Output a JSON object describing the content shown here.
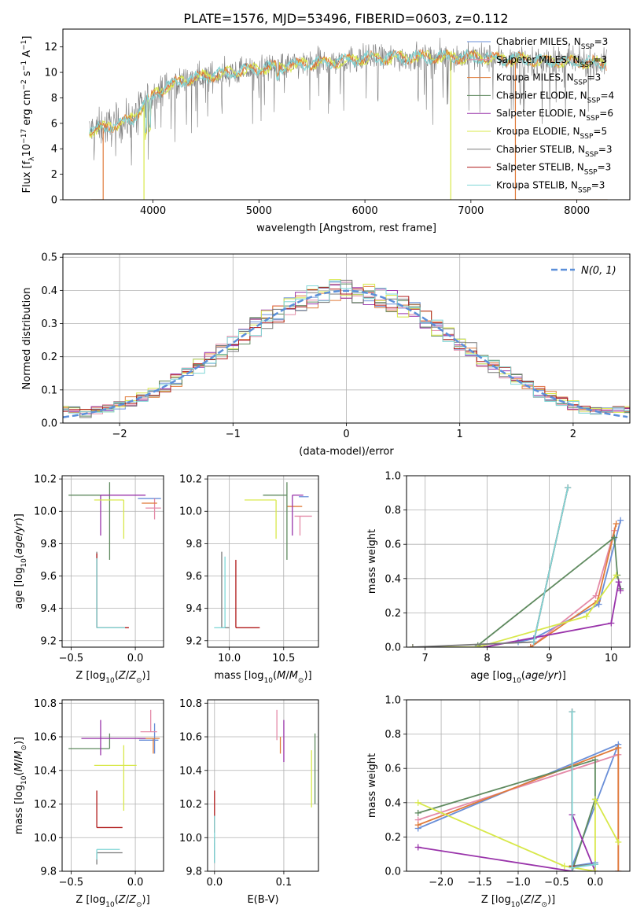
{
  "figure_title": "PLATE=1576, MJD=53496, FIBERID=0603, z=0.112",
  "colors": {
    "chabrier_miles": "#6a8fd8",
    "salpeter_miles": "#e48aa8",
    "kroupa_miles": "#e07b3a",
    "chabrier_elodie": "#5f8a5f",
    "salpeter_elodie": "#9933aa",
    "kroupa_elodie": "#d8e84a",
    "chabrier_stelib": "#7a7a7a",
    "salpeter_stelib": "#b01a1a",
    "kroupa_stelib": "#7fd6d6",
    "normal": "#5b8fd9",
    "grid": "#b0b0b0"
  },
  "chart_data": [
    {
      "id": "spectrum",
      "type": "line",
      "xlabel": "wavelength [Angstrom, rest frame]",
      "ylabel": "Flux [f",
      "ylabel_sub": "λ",
      "ylabel_rest": "10",
      "ylabel_exp": "−17",
      "ylabel_tail": " erg cm",
      "ylabel_exp2": "−2",
      "ylabel_tail2": " s",
      "ylabel_exp3": "−1",
      "ylabel_tail3": " A",
      "ylabel_exp4": "−1",
      "ylabel_end": "]",
      "xlim": [
        3150,
        8500
      ],
      "ylim": [
        0,
        13.4
      ],
      "xticks": [
        4000,
        5000,
        6000,
        7000,
        8000
      ],
      "yticks": [
        0,
        2,
        4,
        6,
        8,
        10,
        12
      ],
      "continuum": [
        [
          3400,
          5.4
        ],
        [
          3650,
          5.9
        ],
        [
          3800,
          6.3
        ],
        [
          3950,
          7.8
        ],
        [
          4100,
          8.8
        ],
        [
          4300,
          9.4
        ],
        [
          4600,
          9.8
        ],
        [
          5000,
          10.3
        ],
        [
          5500,
          10.7
        ],
        [
          6000,
          11.1
        ],
        [
          6500,
          11.2
        ],
        [
          7000,
          11.2
        ],
        [
          7500,
          11.0
        ],
        [
          8000,
          10.8
        ],
        [
          8280,
          10.7
        ]
      ],
      "legend": [
        {
          "name": "Chabrier MILES, N",
          "sub": "SSP",
          "tail": "=3",
          "color_key": "chabrier_miles"
        },
        {
          "name": "Salpeter MILES, N",
          "sub": "SSP",
          "tail": "=3",
          "color_key": "salpeter_miles"
        },
        {
          "name": "Kroupa MILES, N",
          "sub": "SSP",
          "tail": "=3",
          "color_key": "kroupa_miles"
        },
        {
          "name": "Chabrier ELODIE, N",
          "sub": "SSP",
          "tail": "=4",
          "color_key": "chabrier_elodie"
        },
        {
          "name": "Salpeter ELODIE, N",
          "sub": "SSP",
          "tail": "=6",
          "color_key": "salpeter_elodie"
        },
        {
          "name": "Kroupa ELODIE, N",
          "sub": "SSP",
          "tail": "=5",
          "color_key": "kroupa_elodie"
        },
        {
          "name": "Chabrier STELIB, N",
          "sub": "SSP",
          "tail": "=3",
          "color_key": "chabrier_stelib"
        },
        {
          "name": "Salpeter STELIB, N",
          "sub": "SSP",
          "tail": "=3",
          "color_key": "salpeter_stelib"
        },
        {
          "name": "Kroupa STELIB, N",
          "sub": "SSP",
          "tail": "=3",
          "color_key": "kroupa_stelib"
        }
      ]
    },
    {
      "id": "residuals",
      "type": "line",
      "xlabel": "(data-model)/error",
      "ylabel": "Normed distribution",
      "xlim": [
        -2.5,
        2.5
      ],
      "ylim": [
        0,
        0.51
      ],
      "xticks": [
        -2,
        -1,
        0,
        1,
        2
      ],
      "yticks": [
        0.0,
        0.1,
        0.2,
        0.3,
        0.4,
        0.5
      ],
      "grid": true,
      "legend": "N(0, 1)",
      "legend_position": "top-right",
      "normal_mean": 0,
      "normal_sigma": 1
    },
    {
      "id": "age_vs_Z",
      "type": "scatter",
      "xlabel": "Z [log10(Z/Z⊙)]",
      "ylabel": "age  [log10(age/yr)]",
      "xlim": [
        -0.57,
        0.22
      ],
      "ylim": [
        9.16,
        10.22
      ],
      "xticks": [
        -0.5,
        0.0
      ],
      "yticks": [
        9.2,
        9.4,
        9.6,
        9.8,
        10.0,
        10.2
      ],
      "grid": true,
      "errorbars": [
        {
          "series": "chabrier_miles",
          "x": 0.12,
          "y": 10.08,
          "xerr": [
            0.1,
            0.08
          ],
          "yerr": [
            0.0,
            0.0
          ]
        },
        {
          "series": "salpeter_miles",
          "x": 0.15,
          "y": 10.02,
          "xerr": [
            0.07,
            0.05
          ],
          "yerr": [
            0.07,
            0.06
          ]
        },
        {
          "series": "kroupa_miles",
          "x": 0.14,
          "y": 10.05,
          "xerr": [
            0.09,
            0.03
          ],
          "yerr": [
            0.0,
            0.0
          ]
        },
        {
          "series": "chabrier_elodie",
          "x": -0.2,
          "y": 10.1,
          "xerr": [
            0.32,
            0.0
          ],
          "yerr": [
            0.4,
            0.08
          ]
        },
        {
          "series": "salpeter_elodie",
          "x": -0.27,
          "y": 10.1,
          "xerr": [
            0.0,
            0.35
          ],
          "yerr": [
            0.25,
            0.0
          ]
        },
        {
          "series": "kroupa_elodie",
          "x": -0.09,
          "y": 10.07,
          "xerr": [
            0.23,
            0.0
          ],
          "yerr": [
            0.24,
            0.0
          ]
        },
        {
          "series": "chabrier_stelib",
          "x": -0.3,
          "y": 9.28,
          "xerr": [
            0.0,
            0.2
          ],
          "yerr": [
            0.0,
            0.47
          ]
        },
        {
          "series": "salpeter_stelib",
          "x": -0.3,
          "y": 9.28,
          "xerr": [
            0.0,
            0.25
          ],
          "yerr": [
            0.0,
            0.46
          ]
        },
        {
          "series": "kroupa_stelib",
          "x": -0.3,
          "y": 9.28,
          "xerr": [
            0.0,
            0.22
          ],
          "yerr": [
            0.0,
            0.43
          ]
        }
      ]
    },
    {
      "id": "age_vs_mass",
      "type": "scatter",
      "xlabel": "mass [log10(M/M⊙)]",
      "ylabel": "",
      "xlim": [
        9.8,
        10.82
      ],
      "ylim": [
        9.16,
        10.22
      ],
      "xticks": [
        10.0,
        10.5
      ],
      "yticks": [
        9.2,
        9.4,
        9.6,
        9.8,
        10.0,
        10.2
      ],
      "grid": true,
      "errorbars": [
        {
          "series": "chabrier_miles",
          "x": 10.7,
          "y": 10.09,
          "xerr": [
            0.06,
            0.03
          ],
          "yerr": [
            0.0,
            0.0
          ]
        },
        {
          "series": "salpeter_miles",
          "x": 10.65,
          "y": 9.97,
          "xerr": [
            0.05,
            0.11
          ],
          "yerr": [
            0.12,
            0.0
          ]
        },
        {
          "series": "kroupa_miles",
          "x": 10.62,
          "y": 10.03,
          "xerr": [
            0.09,
            0.05
          ],
          "yerr": [
            0.0,
            0.0
          ]
        },
        {
          "series": "chabrier_elodie",
          "x": 10.53,
          "y": 10.1,
          "xerr": [
            0.22,
            0.0
          ],
          "yerr": [
            0.4,
            0.08
          ]
        },
        {
          "series": "salpeter_elodie",
          "x": 10.58,
          "y": 10.1,
          "xerr": [
            0.0,
            0.1
          ],
          "yerr": [
            0.25,
            0.0
          ]
        },
        {
          "series": "kroupa_elodie",
          "x": 10.43,
          "y": 10.07,
          "xerr": [
            0.29,
            0.0
          ],
          "yerr": [
            0.24,
            0.0
          ]
        },
        {
          "series": "chabrier_stelib",
          "x": 9.93,
          "y": 9.28,
          "xerr": [
            0.0,
            0.07
          ],
          "yerr": [
            0.0,
            0.47
          ]
        },
        {
          "series": "salpeter_stelib",
          "x": 10.06,
          "y": 9.28,
          "xerr": [
            0.0,
            0.22
          ],
          "yerr": [
            0.0,
            0.42
          ]
        },
        {
          "series": "kroupa_stelib",
          "x": 9.96,
          "y": 9.28,
          "xerr": [
            0.1,
            0.0
          ],
          "yerr": [
            0.0,
            0.44
          ]
        }
      ]
    },
    {
      "id": "weight_vs_age",
      "type": "line",
      "xlabel": "age  [log10(age/yr)]",
      "ylabel": "mass weight",
      "xlim": [
        6.7,
        10.3
      ],
      "ylim": [
        0,
        1.0
      ],
      "xticks": [
        7,
        8,
        9,
        10
      ],
      "yticks": [
        0.0,
        0.2,
        0.4,
        0.6,
        0.8,
        1.0
      ],
      "grid": true,
      "series": [
        {
          "name": "chabrier_miles",
          "x": [
            8.5,
            8.75,
            9.8,
            10.15
          ],
          "y": [
            0.03,
            0.05,
            0.25,
            0.74
          ]
        },
        {
          "name": "salpeter_miles",
          "x": [
            8.7,
            9.75,
            10.05
          ],
          "y": [
            0.0,
            0.3,
            0.68
          ]
        },
        {
          "name": "kroupa_miles",
          "x": [
            8.7,
            9.78,
            10.08
          ],
          "y": [
            0.0,
            0.27,
            0.72
          ]
        },
        {
          "name": "chabrier_elodie",
          "x": [
            7.85,
            10.05,
            10.1,
            10.15
          ],
          "y": [
            0.01,
            0.64,
            0.42,
            0.34
          ]
        },
        {
          "name": "salpeter_elodie",
          "x": [
            7.95,
            10.0,
            10.12,
            10.15
          ],
          "y": [
            0.0,
            0.14,
            0.38,
            0.33
          ]
        },
        {
          "name": "kroupa_elodie",
          "x": [
            6.8,
            7.85,
            9.6,
            10.08
          ],
          "y": [
            0.0,
            0.0,
            0.18,
            0.42
          ]
        },
        {
          "name": "chabrier_stelib",
          "x": [
            6.8,
            8.75,
            9.3
          ],
          "y": [
            0.0,
            0.03,
            0.93
          ]
        },
        {
          "name": "salpeter_stelib",
          "x": [
            8.75,
            9.3
          ],
          "y": [
            0.03,
            0.93
          ]
        },
        {
          "name": "kroupa_stelib",
          "x": [
            8.75,
            9.3
          ],
          "y": [
            0.03,
            0.93
          ]
        }
      ]
    },
    {
      "id": "mass_vs_Z",
      "type": "scatter",
      "xlabel": "Z [log10(Z/Z⊙)]",
      "ylabel": "mass [log10(M/M⊙)]",
      "xlim": [
        -0.57,
        0.22
      ],
      "ylim": [
        9.8,
        10.82
      ],
      "xticks": [
        -0.5,
        0.0
      ],
      "yticks": [
        9.8,
        10.0,
        10.2,
        10.4,
        10.6,
        10.8
      ],
      "grid": true,
      "errorbars": [
        {
          "series": "chabrier_miles",
          "x": 0.15,
          "y": 10.58,
          "xerr": [
            0.12,
            0.03
          ],
          "yerr": [
            0.08,
            0.1
          ]
        },
        {
          "series": "salpeter_miles",
          "x": 0.12,
          "y": 10.63,
          "xerr": [
            0.08,
            0.05
          ],
          "yerr": [
            0.0,
            0.13
          ]
        },
        {
          "series": "kroupa_miles",
          "x": 0.14,
          "y": 10.59,
          "xerr": [
            0.12,
            0.05
          ],
          "yerr": [
            0.09,
            0.0
          ]
        },
        {
          "series": "chabrier_elodie",
          "x": -0.2,
          "y": 10.53,
          "xerr": [
            0.32,
            0.0
          ],
          "yerr": [
            0.0,
            0.09
          ]
        },
        {
          "series": "salpeter_elodie",
          "x": -0.27,
          "y": 10.59,
          "xerr": [
            0.15,
            0.35
          ],
          "yerr": [
            0.1,
            0.11
          ]
        },
        {
          "series": "kroupa_elodie",
          "x": -0.09,
          "y": 10.43,
          "xerr": [
            0.23,
            0.1
          ],
          "yerr": [
            0.27,
            0.12
          ]
        },
        {
          "series": "chabrier_stelib",
          "x": -0.3,
          "y": 9.91,
          "xerr": [
            0.0,
            0.2
          ],
          "yerr": [
            0.07,
            0.0
          ]
        },
        {
          "series": "salpeter_stelib",
          "x": -0.3,
          "y": 10.06,
          "xerr": [
            0.0,
            0.2
          ],
          "yerr": [
            0.0,
            0.22
          ]
        },
        {
          "series": "kroupa_stelib",
          "x": -0.3,
          "y": 9.93,
          "xerr": [
            0.0,
            0.18
          ],
          "yerr": [
            0.06,
            0.0
          ]
        }
      ]
    },
    {
      "id": "mass_vs_ebv",
      "type": "scatter",
      "xlabel": "E(B-V)",
      "ylabel": "",
      "xlim": [
        -0.01,
        0.15
      ],
      "ylim": [
        9.8,
        10.82
      ],
      "xticks": [
        0.0,
        0.1
      ],
      "yticks": [
        9.8,
        10.0,
        10.2,
        10.4,
        10.6,
        10.8
      ],
      "grid": true,
      "errorbars": [
        {
          "series": "chabrier_miles",
          "x": 0.0,
          "y": 9.97,
          "xerr": [
            0.0,
            0.0
          ],
          "yerr": [
            0.12,
            0.0
          ]
        },
        {
          "series": "salpeter_miles",
          "x": 0.09,
          "y": 10.66,
          "xerr": [
            0.0,
            0.0
          ],
          "yerr": [
            0.08,
            0.1
          ]
        },
        {
          "series": "kroupa_miles",
          "x": 0.095,
          "y": 10.5,
          "xerr": [
            0.0,
            0.0
          ],
          "yerr": [
            0.0,
            0.1
          ]
        },
        {
          "series": "chabrier_elodie",
          "x": 0.145,
          "y": 10.4,
          "xerr": [
            0.0,
            0.0
          ],
          "yerr": [
            0.2,
            0.22
          ]
        },
        {
          "series": "salpeter_elodie",
          "x": 0.1,
          "y": 10.55,
          "xerr": [
            0.0,
            0.0
          ],
          "yerr": [
            0.1,
            0.15
          ]
        },
        {
          "series": "kroupa_elodie",
          "x": 0.14,
          "y": 10.35,
          "xerr": [
            0.0,
            0.0
          ],
          "yerr": [
            0.17,
            0.17
          ]
        },
        {
          "series": "chabrier_stelib",
          "x": 0.0,
          "y": 9.9,
          "xerr": [
            0.0,
            0.0
          ],
          "yerr": [
            0.05,
            0.1
          ]
        },
        {
          "series": "salpeter_stelib",
          "x": 0.0,
          "y": 10.13,
          "xerr": [
            0.0,
            0.0
          ],
          "yerr": [
            0.1,
            0.15
          ]
        },
        {
          "series": "kroupa_stelib",
          "x": 0.0,
          "y": 9.95,
          "xerr": [
            0.0,
            0.0
          ],
          "yerr": [
            0.1,
            0.18
          ]
        }
      ]
    },
    {
      "id": "weight_vs_Z",
      "type": "line",
      "xlabel": "Z [log10(Z/Z⊙)]",
      "ylabel": "mass weight",
      "xlim": [
        -2.45,
        0.45
      ],
      "ylim": [
        0,
        1.0
      ],
      "xticks": [
        -2.0,
        -1.5,
        -1.0,
        -0.5,
        0.0
      ],
      "yticks": [
        0.0,
        0.2,
        0.4,
        0.6,
        0.8,
        1.0
      ],
      "grid": true,
      "series": [
        {
          "name": "chabrier_miles",
          "x": [
            -2.3,
            0.3,
            -0.3,
            0.0
          ],
          "y": [
            0.25,
            0.74,
            0.03,
            0.05
          ]
        },
        {
          "name": "salpeter_miles",
          "x": [
            -2.3,
            0.3,
            0.3
          ],
          "y": [
            0.3,
            0.68,
            0.0
          ]
        },
        {
          "name": "kroupa_miles",
          "x": [
            -2.3,
            0.3,
            0.3
          ],
          "y": [
            0.27,
            0.72,
            0.0
          ]
        },
        {
          "name": "chabrier_elodie",
          "x": [
            -2.3,
            0.0,
            0.0,
            -0.3
          ],
          "y": [
            0.34,
            0.65,
            0.42,
            0.0
          ]
        },
        {
          "name": "salpeter_elodie",
          "x": [
            -2.3,
            -0.3,
            -0.3,
            0.0
          ],
          "y": [
            0.14,
            0.0,
            0.33,
            0.0
          ]
        },
        {
          "name": "kroupa_elodie",
          "x": [
            -2.3,
            -0.4,
            0.0,
            0.0,
            0.3
          ],
          "y": [
            0.4,
            0.03,
            0.0,
            0.42,
            0.17
          ]
        },
        {
          "name": "chabrier_stelib",
          "x": [
            -0.3,
            -0.3,
            0.0
          ],
          "y": [
            0.93,
            0.03,
            0.04
          ]
        },
        {
          "name": "salpeter_stelib",
          "x": [
            -0.3,
            -0.3
          ],
          "y": [
            0.93,
            0.03
          ]
        },
        {
          "name": "kroupa_stelib",
          "x": [
            -0.3,
            -0.3,
            0.0
          ],
          "y": [
            0.93,
            0.02,
            0.04
          ]
        }
      ]
    }
  ]
}
